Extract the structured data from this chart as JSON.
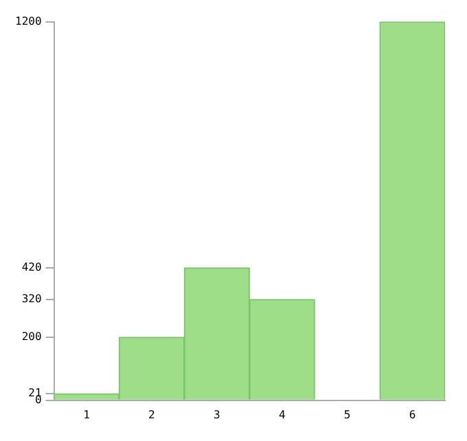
{
  "chart_data": {
    "type": "bar",
    "categories": [
      "1",
      "2",
      "3",
      "4",
      "5",
      "6"
    ],
    "values": [
      21,
      200,
      420,
      320,
      0,
      1200
    ],
    "color": "#9ede88",
    "ylim": [
      0,
      1200
    ],
    "yticks": [
      0,
      21,
      200,
      320,
      420,
      1200
    ],
    "grid": false,
    "legend": false
  }
}
